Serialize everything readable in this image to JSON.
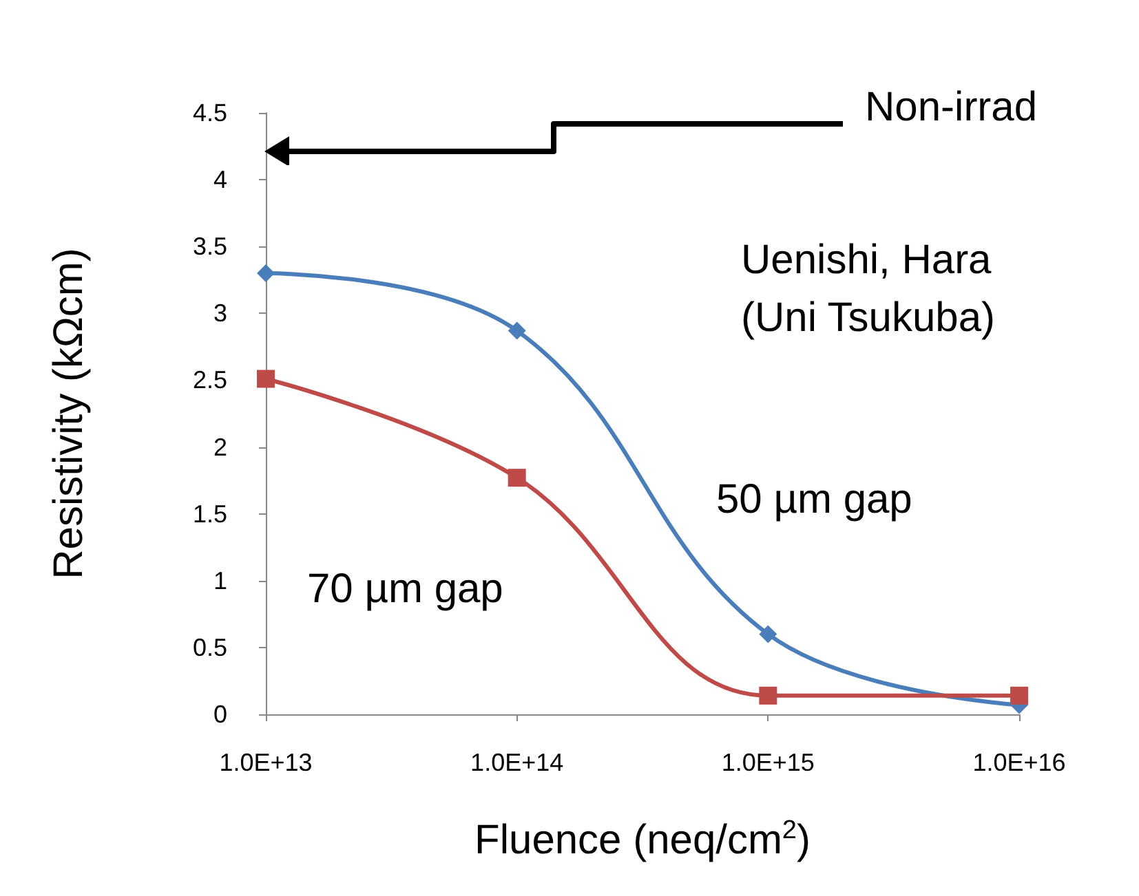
{
  "chart_data": {
    "type": "line",
    "xlabel": "Fluence (neq/cm$^{2}$)",
    "ylabel": "Resistivity (kΩcm)",
    "x": [
      10000000000000.0,
      100000000000000.0,
      1000000000000000.0,
      1e+16
    ],
    "series": [
      {
        "name": "50 µm gap",
        "color": "#4a7ebb",
        "marker": "diamond",
        "values": [
          3.3,
          2.87,
          0.6,
          0.07
        ]
      },
      {
        "name": "70 µm gap",
        "color": "#be4b48",
        "marker": "square",
        "values": [
          2.51,
          1.77,
          0.14,
          0.14
        ]
      }
    ],
    "log": "x",
    "xlim": [
      10000000000000.0,
      1e+16
    ],
    "xticks": [
      {
        "value": 10000000000000.0,
        "label": "1.0E+13"
      },
      {
        "value": 100000000000000.0,
        "label": "1.0E+14"
      },
      {
        "value": 1000000000000000.0,
        "label": "1.0E+15"
      },
      {
        "value": 1e+16,
        "label": "1.0E+16"
      }
    ],
    "ylim": [
      0,
      4.5
    ],
    "yticks": [
      0,
      0.5,
      1,
      1.5,
      2,
      2.5,
      3,
      3.5,
      4,
      4.5
    ],
    "grid": false,
    "legend": false,
    "annotations": [
      "Non-irrad",
      "Uenishi, Hara\n(Uni Tsukuba)"
    ]
  }
}
